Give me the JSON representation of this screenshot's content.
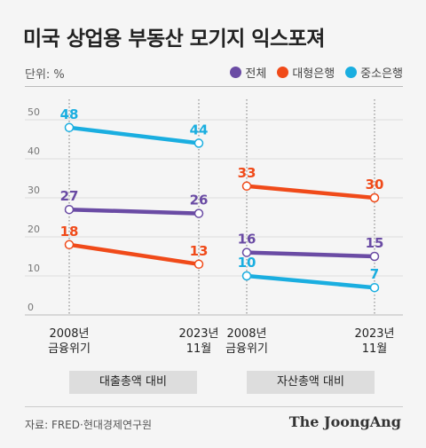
{
  "title": "미국 상업용 부동산 모기지 익스포져",
  "unit_label": "단위: %",
  "legend": [
    {
      "label": "전체",
      "color": "#6a4ba4"
    },
    {
      "label": "대형은행",
      "color": "#f04a19"
    },
    {
      "label": "중소은행",
      "color": "#1aaee0"
    }
  ],
  "source": "자료: FRED·현대경제연구원",
  "logo": "The JoongAng",
  "chart_data": {
    "type": "line",
    "ylim": [
      0,
      50
    ],
    "y_ticks": [
      "0",
      "10",
      "20",
      "30",
      "40",
      "50"
    ],
    "panels": [
      {
        "label": "대출총액 대비",
        "x_labels": [
          [
            "2008년",
            "금융위기"
          ],
          [
            "2023년",
            "11월"
          ]
        ],
        "series": [
          {
            "name": "중소은행",
            "values": [
              48,
              44
            ]
          },
          {
            "name": "전체",
            "values": [
              27,
              26
            ]
          },
          {
            "name": "대형은행",
            "values": [
              18,
              13
            ]
          }
        ]
      },
      {
        "label": "자산총액 대비",
        "x_labels": [
          [
            "2008년",
            "금융위기"
          ],
          [
            "2023년",
            "11월"
          ]
        ],
        "series": [
          {
            "name": "대형은행",
            "values": [
              33,
              30
            ]
          },
          {
            "name": "전체",
            "values": [
              16,
              15
            ]
          },
          {
            "name": "중소은행",
            "values": [
              10,
              7
            ]
          }
        ]
      }
    ]
  }
}
